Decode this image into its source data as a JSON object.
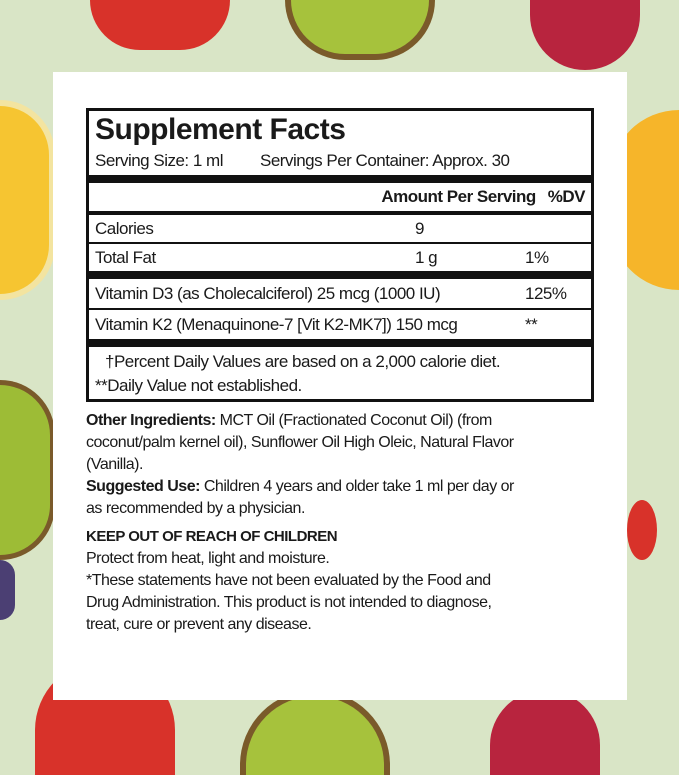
{
  "colors": {
    "background": "#d9e5c6",
    "panel": "#ffffff",
    "text": "#1a1a1a"
  },
  "facts": {
    "title": "Supplement Facts",
    "serving_size": "Serving Size: 1 ml",
    "servings_per_container": "Servings Per Container: Approx. 30",
    "header": {
      "amount": "Amount Per Serving",
      "dv": "%DV"
    },
    "rows": [
      {
        "name": "Calories",
        "amount": "9",
        "dv": ""
      },
      {
        "name": "Total Fat",
        "amount": "1 g",
        "dv": "1%"
      },
      {
        "name": "Vitamin D3 (as Cholecalciferol) 25 mcg (1000 IU)",
        "amount": "",
        "dv": "125%"
      },
      {
        "name": "Vitamin K2 (Menaquinone-7 [Vit K2-MK7]) 150 mcg",
        "amount": "",
        "dv": "**"
      }
    ],
    "footnote1": "†Percent Daily Values are based on a 2,000 calorie diet.",
    "footnote2": "**Daily Value not established."
  },
  "other_ingredients": {
    "label": "Other Ingredients:",
    "lines": [
      " MCT Oil (Fractionated Coconut Oil) (from",
      "coconut/palm kernel oil), Sunflower Oil High Oleic, Natural  Flavor",
      "(Vanilla)."
    ]
  },
  "suggested_use": {
    "label": "Suggested Use:",
    "lines": [
      " Children 4 years and older take 1 ml per day or",
      "as recommended by a physician."
    ]
  },
  "warning": "KEEP OUT OF REACH OF CHILDREN",
  "storage": "Protect from heat, light and moisture.",
  "disclaimer": [
    "*These statements have not been evaluated by the Food and",
    "Drug Administration. This product is not intended to diagnose,",
    "treat, cure or prevent any disease."
  ]
}
